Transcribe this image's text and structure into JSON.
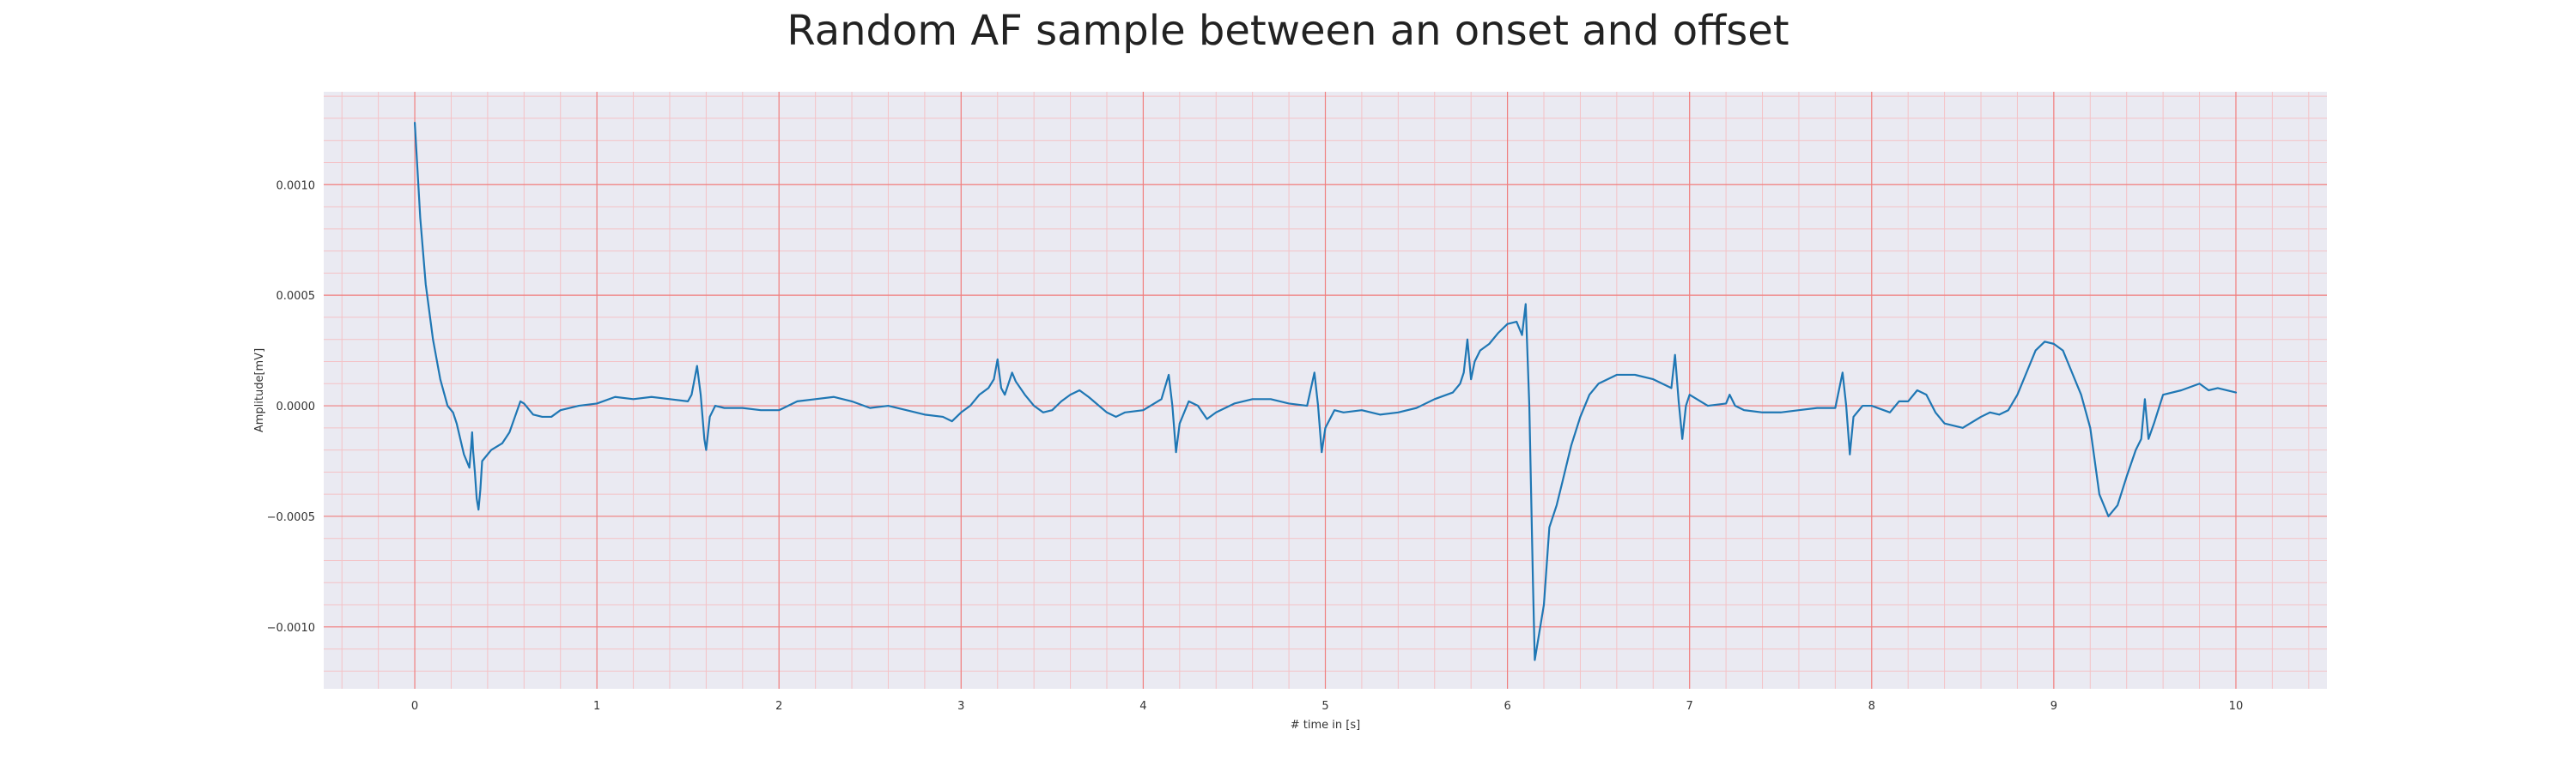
{
  "chart_data": {
    "type": "line",
    "title": "Random AF sample between an onset and offset",
    "xlabel": "# time in [s]",
    "ylabel": "Amplitude[mV]",
    "xlim": [
      -0.5,
      10.5
    ],
    "ylim": [
      -0.00128,
      0.00142
    ],
    "x_ticks": [
      0,
      1,
      2,
      3,
      4,
      5,
      6,
      7,
      8,
      9,
      10
    ],
    "y_ticks": [
      -0.001,
      -0.0005,
      0.0,
      0.0005,
      0.001
    ],
    "y_tick_labels": [
      "−0.0010",
      "−0.0005",
      "0.0000",
      "0.0005",
      "0.0010"
    ],
    "x_minor_step": 0.2,
    "y_minor_step": 0.0001,
    "grid": true,
    "colors": {
      "plot_background": "#eaeaf2",
      "major_grid": "#f08080",
      "minor_grid": "#f4c2c6",
      "line": "#1f77b4"
    },
    "series": [
      {
        "values": [
          [
            0.0,
            0.00128
          ],
          [
            0.03,
            0.00085
          ],
          [
            0.06,
            0.00055
          ],
          [
            0.1,
            0.0003
          ],
          [
            0.14,
            0.00012
          ],
          [
            0.18,
            0.0
          ],
          [
            0.21,
            -3e-05
          ],
          [
            0.23,
            -8e-05
          ],
          [
            0.25,
            -0.00015
          ],
          [
            0.27,
            -0.00022
          ],
          [
            0.29,
            -0.00026
          ],
          [
            0.3,
            -0.00028
          ],
          [
            0.31,
            -0.00018
          ],
          [
            0.315,
            -0.00012
          ],
          [
            0.32,
            -0.0002
          ],
          [
            0.33,
            -0.0003
          ],
          [
            0.34,
            -0.00042
          ],
          [
            0.35,
            -0.00047
          ],
          [
            0.36,
            -0.00038
          ],
          [
            0.37,
            -0.00025
          ],
          [
            0.42,
            -0.0002
          ],
          [
            0.48,
            -0.00017
          ],
          [
            0.52,
            -0.00012
          ],
          [
            0.55,
            -5e-05
          ],
          [
            0.58,
            2e-05
          ],
          [
            0.6,
            1e-05
          ],
          [
            0.65,
            -4e-05
          ],
          [
            0.7,
            -5e-05
          ],
          [
            0.75,
            -5e-05
          ],
          [
            0.8,
            -2e-05
          ],
          [
            0.9,
            0.0
          ],
          [
            1.0,
            1e-05
          ],
          [
            1.1,
            4e-05
          ],
          [
            1.2,
            3e-05
          ],
          [
            1.3,
            4e-05
          ],
          [
            1.4,
            3e-05
          ],
          [
            1.5,
            2e-05
          ],
          [
            1.52,
            5e-05
          ],
          [
            1.55,
            0.00018
          ],
          [
            1.57,
            5e-05
          ],
          [
            1.59,
            -0.00015
          ],
          [
            1.6,
            -0.0002
          ],
          [
            1.62,
            -5e-05
          ],
          [
            1.65,
            0.0
          ],
          [
            1.7,
            -1e-05
          ],
          [
            1.8,
            -1e-05
          ],
          [
            1.9,
            -2e-05
          ],
          [
            2.0,
            -2e-05
          ],
          [
            2.1,
            2e-05
          ],
          [
            2.2,
            3e-05
          ],
          [
            2.3,
            4e-05
          ],
          [
            2.4,
            2e-05
          ],
          [
            2.5,
            -1e-05
          ],
          [
            2.6,
            0.0
          ],
          [
            2.7,
            -2e-05
          ],
          [
            2.8,
            -4e-05
          ],
          [
            2.9,
            -5e-05
          ],
          [
            2.95,
            -7e-05
          ],
          [
            3.0,
            -3e-05
          ],
          [
            3.05,
            0.0
          ],
          [
            3.1,
            5e-05
          ],
          [
            3.15,
            8e-05
          ],
          [
            3.18,
            0.00012
          ],
          [
            3.2,
            0.00021
          ],
          [
            3.22,
            8e-05
          ],
          [
            3.24,
            5e-05
          ],
          [
            3.28,
            0.00015
          ],
          [
            3.3,
            0.00011
          ],
          [
            3.35,
            5e-05
          ],
          [
            3.4,
            0.0
          ],
          [
            3.45,
            -3e-05
          ],
          [
            3.5,
            -2e-05
          ],
          [
            3.55,
            2e-05
          ],
          [
            3.6,
            5e-05
          ],
          [
            3.65,
            7e-05
          ],
          [
            3.7,
            4e-05
          ],
          [
            3.8,
            -3e-05
          ],
          [
            3.85,
            -5e-05
          ],
          [
            3.9,
            -3e-05
          ],
          [
            4.0,
            -2e-05
          ],
          [
            4.1,
            3e-05
          ],
          [
            4.14,
            0.00014
          ],
          [
            4.16,
            0.0
          ],
          [
            4.18,
            -0.00021
          ],
          [
            4.2,
            -8e-05
          ],
          [
            4.25,
            2e-05
          ],
          [
            4.3,
            0.0
          ],
          [
            4.35,
            -6e-05
          ],
          [
            4.4,
            -3e-05
          ],
          [
            4.5,
            1e-05
          ],
          [
            4.6,
            3e-05
          ],
          [
            4.7,
            3e-05
          ],
          [
            4.8,
            1e-05
          ],
          [
            4.9,
            0.0
          ],
          [
            4.94,
            0.00015
          ],
          [
            4.96,
            0.0
          ],
          [
            4.98,
            -0.00021
          ],
          [
            5.0,
            -0.0001
          ],
          [
            5.05,
            -2e-05
          ],
          [
            5.1,
            -3e-05
          ],
          [
            5.2,
            -2e-05
          ],
          [
            5.3,
            -4e-05
          ],
          [
            5.4,
            -3e-05
          ],
          [
            5.5,
            -1e-05
          ],
          [
            5.6,
            3e-05
          ],
          [
            5.7,
            6e-05
          ],
          [
            5.74,
            0.0001
          ],
          [
            5.76,
            0.00015
          ],
          [
            5.78,
            0.0003
          ],
          [
            5.8,
            0.00012
          ],
          [
            5.82,
            0.0002
          ],
          [
            5.85,
            0.00025
          ],
          [
            5.9,
            0.00028
          ],
          [
            5.95,
            0.00033
          ],
          [
            6.0,
            0.00037
          ],
          [
            6.05,
            0.00038
          ],
          [
            6.08,
            0.00032
          ],
          [
            6.1,
            0.00046
          ],
          [
            6.12,
            0.0
          ],
          [
            6.14,
            -0.0008
          ],
          [
            6.15,
            -0.00115
          ],
          [
            6.17,
            -0.00105
          ],
          [
            6.2,
            -0.0009
          ],
          [
            6.23,
            -0.00055
          ],
          [
            6.27,
            -0.00045
          ],
          [
            6.3,
            -0.00035
          ],
          [
            6.35,
            -0.00018
          ],
          [
            6.4,
            -5e-05
          ],
          [
            6.45,
            5e-05
          ],
          [
            6.5,
            0.0001
          ],
          [
            6.6,
            0.00014
          ],
          [
            6.7,
            0.00014
          ],
          [
            6.8,
            0.00012
          ],
          [
            6.85,
            0.0001
          ],
          [
            6.9,
            8e-05
          ],
          [
            6.92,
            0.00023
          ],
          [
            6.94,
            2e-05
          ],
          [
            6.96,
            -0.00015
          ],
          [
            6.98,
            0.0
          ],
          [
            7.0,
            5e-05
          ],
          [
            7.1,
            0.0
          ],
          [
            7.2,
            1e-05
          ],
          [
            7.22,
            5e-05
          ],
          [
            7.25,
            0.0
          ],
          [
            7.3,
            -2e-05
          ],
          [
            7.4,
            -3e-05
          ],
          [
            7.5,
            -3e-05
          ],
          [
            7.6,
            -2e-05
          ],
          [
            7.7,
            -1e-05
          ],
          [
            7.8,
            -1e-05
          ],
          [
            7.84,
            0.00015
          ],
          [
            7.86,
            0.0
          ],
          [
            7.88,
            -0.00022
          ],
          [
            7.9,
            -5e-05
          ],
          [
            7.95,
            0.0
          ],
          [
            8.0,
            0.0
          ],
          [
            8.1,
            -3e-05
          ],
          [
            8.15,
            2e-05
          ],
          [
            8.2,
            2e-05
          ],
          [
            8.25,
            7e-05
          ],
          [
            8.3,
            5e-05
          ],
          [
            8.35,
            -3e-05
          ],
          [
            8.4,
            -8e-05
          ],
          [
            8.5,
            -0.0001
          ],
          [
            8.6,
            -5e-05
          ],
          [
            8.65,
            -3e-05
          ],
          [
            8.7,
            -4e-05
          ],
          [
            8.75,
            -2e-05
          ],
          [
            8.8,
            5e-05
          ],
          [
            8.85,
            0.00015
          ],
          [
            8.9,
            0.00025
          ],
          [
            8.95,
            0.00029
          ],
          [
            9.0,
            0.00028
          ],
          [
            9.05,
            0.00025
          ],
          [
            9.1,
            0.00015
          ],
          [
            9.15,
            5e-05
          ],
          [
            9.2,
            -0.0001
          ],
          [
            9.25,
            -0.0004
          ],
          [
            9.3,
            -0.0005
          ],
          [
            9.35,
            -0.00045
          ],
          [
            9.4,
            -0.00032
          ],
          [
            9.45,
            -0.0002
          ],
          [
            9.48,
            -0.00015
          ],
          [
            9.5,
            3e-05
          ],
          [
            9.52,
            -0.00015
          ],
          [
            9.55,
            -8e-05
          ],
          [
            9.6,
            5e-05
          ],
          [
            9.7,
            7e-05
          ],
          [
            9.8,
            0.0001
          ],
          [
            9.85,
            7e-05
          ],
          [
            9.9,
            8e-05
          ],
          [
            10.0,
            6e-05
          ]
        ]
      }
    ]
  }
}
